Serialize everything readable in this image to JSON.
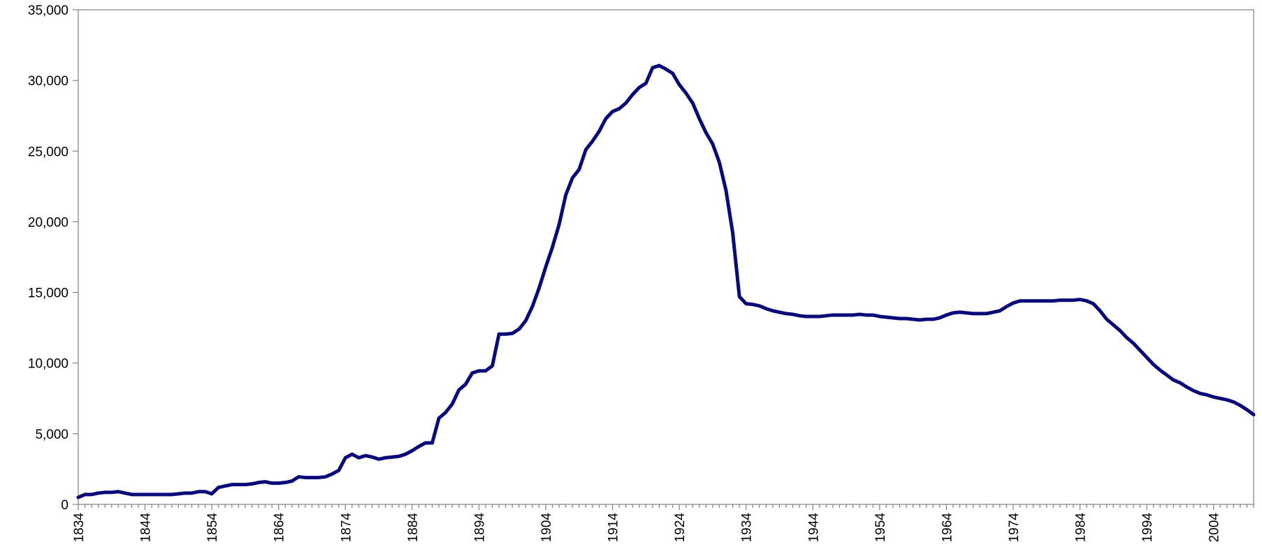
{
  "chart_data": {
    "type": "line",
    "title": "",
    "xlabel": "",
    "ylabel": "",
    "xlim": [
      1834,
      2010
    ],
    "ylim": [
      0,
      35000
    ],
    "grid": false,
    "legend": "none",
    "x_ticks": [
      1834,
      1844,
      1854,
      1864,
      1874,
      1884,
      1894,
      1904,
      1914,
      1924,
      1934,
      1944,
      1954,
      1964,
      1974,
      1984,
      1994,
      2004
    ],
    "y_ticks": [
      0,
      5000,
      10000,
      15000,
      20000,
      25000,
      30000,
      35000
    ],
    "y_tick_labels": [
      "0",
      "5,000",
      "10,000",
      "15,000",
      "20,000",
      "25,000",
      "30,000",
      "35,000"
    ],
    "series": [
      {
        "color": "#0a0a78",
        "x": [
          1834,
          1835,
          1836,
          1837,
          1838,
          1839,
          1840,
          1841,
          1842,
          1843,
          1844,
          1845,
          1846,
          1847,
          1848,
          1849,
          1850,
          1851,
          1852,
          1853,
          1854,
          1855,
          1856,
          1857,
          1858,
          1859,
          1860,
          1861,
          1862,
          1863,
          1864,
          1865,
          1866,
          1867,
          1868,
          1869,
          1870,
          1871,
          1872,
          1873,
          1874,
          1875,
          1876,
          1877,
          1878,
          1879,
          1880,
          1881,
          1882,
          1883,
          1884,
          1885,
          1886,
          1887,
          1888,
          1889,
          1890,
          1891,
          1892,
          1893,
          1894,
          1895,
          1896,
          1897,
          1898,
          1899,
          1900,
          1901,
          1902,
          1903,
          1904,
          1905,
          1906,
          1907,
          1908,
          1909,
          1910,
          1911,
          1912,
          1913,
          1914,
          1915,
          1916,
          1917,
          1918,
          1919,
          1920,
          1921,
          1922,
          1923,
          1924,
          1925,
          1926,
          1927,
          1928,
          1929,
          1930,
          1931,
          1932,
          1933,
          1934,
          1935,
          1936,
          1937,
          1938,
          1939,
          1940,
          1941,
          1942,
          1943,
          1944,
          1945,
          1946,
          1947,
          1948,
          1949,
          1950,
          1951,
          1952,
          1953,
          1954,
          1955,
          1956,
          1957,
          1958,
          1959,
          1960,
          1961,
          1962,
          1963,
          1964,
          1965,
          1966,
          1967,
          1968,
          1969,
          1970,
          1971,
          1972,
          1973,
          1974,
          1975,
          1976,
          1977,
          1978,
          1979,
          1980,
          1981,
          1982,
          1983,
          1984,
          1985,
          1986,
          1987,
          1988,
          1989,
          1990,
          1991,
          1992,
          1993,
          1994,
          1995,
          1996,
          1997,
          1998,
          1999,
          2000,
          2001,
          2002,
          2003,
          2004,
          2005,
          2006,
          2007,
          2008,
          2009,
          2010
        ],
        "values": [
          500,
          700,
          700,
          800,
          850,
          850,
          900,
          800,
          700,
          700,
          700,
          700,
          700,
          700,
          700,
          750,
          800,
          800,
          900,
          900,
          750,
          1200,
          1300,
          1400,
          1400,
          1400,
          1450,
          1550,
          1600,
          1500,
          1500,
          1550,
          1650,
          1950,
          1900,
          1900,
          1900,
          1950,
          2150,
          2400,
          3300,
          3550,
          3300,
          3450,
          3350,
          3200,
          3300,
          3350,
          3400,
          3550,
          3800,
          4100,
          4350,
          4350,
          6100,
          6500,
          7100,
          8100,
          8500,
          9300,
          9450,
          9450,
          9800,
          12050,
          12050,
          12100,
          12400,
          13000,
          14000,
          15300,
          16800,
          18200,
          19800,
          21900,
          23100,
          23700,
          25100,
          25700,
          26400,
          27300,
          27800,
          28000,
          28400,
          29000,
          29500,
          29800,
          30900,
          31050,
          30800,
          30500,
          29700,
          29100,
          28400,
          27300,
          26300,
          25500,
          24200,
          22200,
          19200,
          14700,
          14200,
          14150,
          14050,
          13850,
          13700,
          13600,
          13500,
          13450,
          13350,
          13300,
          13300,
          13300,
          13350,
          13400,
          13400,
          13400,
          13400,
          13450,
          13400,
          13400,
          13300,
          13250,
          13200,
          13150,
          13150,
          13100,
          13050,
          13100,
          13100,
          13200,
          13400,
          13550,
          13600,
          13550,
          13500,
          13500,
          13500,
          13600,
          13700,
          14000,
          14250,
          14400,
          14400,
          14400,
          14400,
          14400,
          14400,
          14450,
          14450,
          14450,
          14500,
          14400,
          14200,
          13700,
          13100,
          12700,
          12300,
          11800,
          11400,
          10900,
          10400,
          9900,
          9500,
          9150,
          8800,
          8600,
          8300,
          8050,
          7850,
          7750,
          7600,
          7500,
          7400,
          7250,
          7000,
          6700,
          6350
        ]
      }
    ]
  }
}
